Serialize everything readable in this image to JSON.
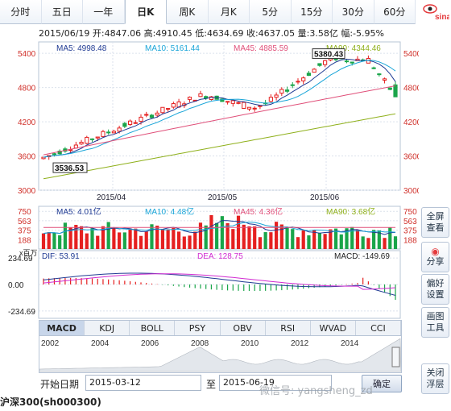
{
  "tabs": [
    {
      "label": "分时",
      "active": false
    },
    {
      "label": "五日",
      "active": false
    },
    {
      "label": "一年",
      "active": false
    },
    {
      "label": "日K",
      "active": true
    },
    {
      "label": "周K",
      "active": false
    },
    {
      "label": "月K",
      "active": false
    },
    {
      "label": "5分",
      "active": false
    },
    {
      "label": "15分",
      "active": false
    },
    {
      "label": "30分",
      "active": false
    },
    {
      "label": "60分",
      "active": false
    }
  ],
  "logo": {
    "text": "sina",
    "label": "新浪"
  },
  "info": {
    "text": "2015/06/19 开:4847.06 高:4910.45 低:4634.69 收:4637.05 量:3.58亿 幅:-5.95%"
  },
  "main": {
    "ma_labels": [
      {
        "text": "MA5: 4998.48",
        "color": "#1f3a93"
      },
      {
        "text": "MA10: 5161.44",
        "color": "#1aa5d8"
      },
      {
        "text": "MA45: 4885.59",
        "color": "#e0507a"
      },
      {
        "text": "MA90: 4344.46",
        "color": "#8fb01b"
      }
    ],
    "y_ticks": [
      "5400",
      "4800",
      "4200",
      "3600",
      "3000"
    ],
    "x_labels": [
      "2015/04",
      "2015/05",
      "2015/06"
    ],
    "high_label": "5380.43",
    "low_label": "3536.53"
  },
  "volume": {
    "labels": [
      {
        "text": "MA5: 4.01亿",
        "color": "#1f3a93"
      },
      {
        "text": "MA10: 4.48亿",
        "color": "#1aa5d8"
      },
      {
        "text": "MA45: 4.36亿",
        "color": "#e0507a"
      },
      {
        "text": "MA90: 3.68亿",
        "color": "#8fb01b"
      }
    ],
    "y_ticks": [
      "750",
      "563",
      "375",
      "188"
    ],
    "unit": "x百万"
  },
  "macd": {
    "labels": [
      {
        "text": "DIF: 53.91",
        "color": "#1f3a93"
      },
      {
        "text": "DEA: 128.75",
        "color": "#d12bd1"
      },
      {
        "text": "MACD: -149.69",
        "color": "#222222"
      }
    ],
    "y_ticks": [
      "234.69",
      "0.00",
      "-234.69"
    ]
  },
  "indicators": [
    {
      "label": "MACD",
      "active": true
    },
    {
      "label": "KDJ",
      "active": false
    },
    {
      "label": "BOLL",
      "active": false
    },
    {
      "label": "PSY",
      "active": false
    },
    {
      "label": "OBV",
      "active": false
    },
    {
      "label": "RSI",
      "active": false
    },
    {
      "label": "WVAD",
      "active": false
    },
    {
      "label": "CCI",
      "active": false
    }
  ],
  "overview_years": [
    "2002",
    "2004",
    "2006",
    "2008",
    "2010",
    "2012",
    "2014"
  ],
  "side_buttons": [
    {
      "l1": "全屏",
      "l2": "查看"
    },
    {
      "l1": "分享",
      "l2": ""
    },
    {
      "l1": "偏好",
      "l2": "设置"
    },
    {
      "l1": "画图",
      "l2": "工具"
    },
    {
      "l1": "关闭",
      "l2": "浮层"
    }
  ],
  "date": {
    "start_label": "开始日期",
    "start_value": "2015-03-12",
    "to_label": "至",
    "end_value": "2015-06-19",
    "ok_label": "确定"
  },
  "watermark": "微信号: yangsheng_zd",
  "footer": "沪深300(sh000300)",
  "colors": {
    "up": "#e52020",
    "down": "#1aa54a",
    "grid": "#dbe2ec",
    "axis_up": "#d0302a"
  }
}
